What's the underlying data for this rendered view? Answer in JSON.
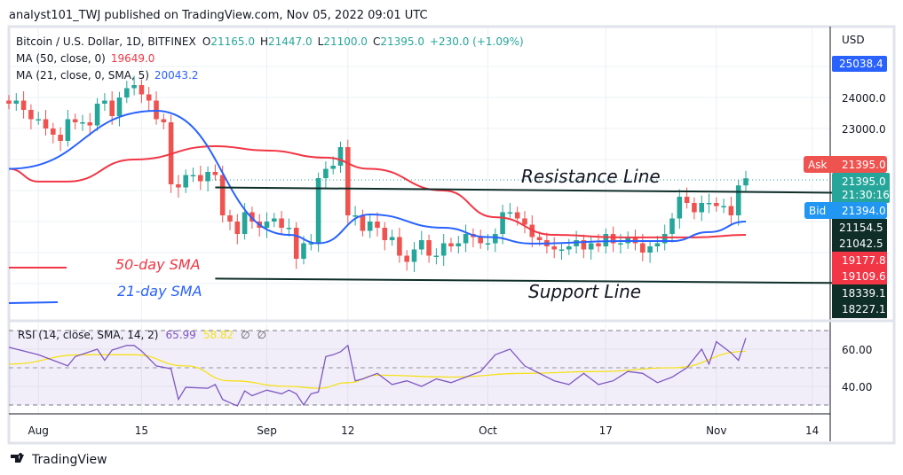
{
  "header": {
    "published": "analyst101_TWJ published on TradingView.com, Nov 05, 2022 09:01 UTC"
  },
  "legend": {
    "symbol": "Bitcoin / U.S. Dollar, 1D, BITFINEX",
    "o_label": "O",
    "o": "21165.0",
    "h_label": "H",
    "h": "21447.0",
    "l_label": "L",
    "l": "21100.0",
    "c_label": "C",
    "c": "21395.0",
    "change": "+230.0 (+1.09%)",
    "ma50_label": "MA (50, close, 0)",
    "ma50_value": "19649.0",
    "ma21_label": "MA (21, close, 0, SMA, 5)",
    "ma21_value": "20043.2",
    "rsi_label": "RSI (14, close, SMA, 14, 2)",
    "rsi_value": "65.99",
    "rsi_signal_value": "58.82",
    "rsi_extra1": "∅",
    "rsi_extra2": "∅"
  },
  "annotations": {
    "resistance": "Resistance Line",
    "support": "Support Line",
    "sma50": "50-day SMA",
    "sma21": "21-day SMA"
  },
  "price_axis": {
    "currency": "USD",
    "ticks": [
      "24000.0",
      "23000.0"
    ],
    "ma_top": "25038.4",
    "ask_label": "Ask",
    "ask": "21395.0",
    "last": "21395.0",
    "countdown": "21:30:16",
    "bid_label": "Bid",
    "bid": "21394.0",
    "dark1a": "21154.5",
    "dark1b": "21042.5",
    "red_a": "19177.8",
    "red_b": "19109.6",
    "dark2a": "18339.1",
    "dark2b": "18227.1"
  },
  "rsi_axis": {
    "ticks": [
      "60.00",
      "40.00"
    ]
  },
  "footer": {
    "brand": "TradingView"
  },
  "colors": {
    "up": "#26a69a",
    "down": "#ef5350",
    "ma50": "#f23645",
    "ma21": "#2962ff",
    "rsi": "#7e57c2",
    "signal": "#f5e11a"
  },
  "chart_data": {
    "type": "candlestick",
    "title": "Bitcoin / U.S. Dollar, 1D, BITFINEX",
    "start_date": "2022-07-28",
    "x_tick_labels": [
      {
        "day": 4,
        "label": "Aug"
      },
      {
        "day": 18,
        "label": "15"
      },
      {
        "day": 35,
        "label": "Sep"
      },
      {
        "day": 46,
        "label": "12"
      },
      {
        "day": 65,
        "label": "Oct"
      },
      {
        "day": 81,
        "label": "17"
      },
      {
        "day": 96,
        "label": "Nov"
      },
      {
        "day": 109,
        "label": "14"
      }
    ],
    "ylim": [
      17800,
      25300
    ],
    "closes": [
      23800,
      23900,
      23600,
      23300,
      23300,
      23000,
      22800,
      22600,
      23300,
      23200,
      23200,
      23100,
      23800,
      23900,
      23400,
      24000,
      24300,
      24400,
      24100,
      23900,
      23300,
      23200,
      21200,
      21100,
      21500,
      21500,
      21300,
      21600,
      21500,
      20200,
      20000,
      19600,
      20300,
      20000,
      19800,
      20000,
      20100,
      19800,
      19800,
      18800,
      19300,
      19300,
      21400,
      21700,
      21800,
      22400,
      20200,
      20200,
      19700,
      20000,
      19800,
      19400,
      19500,
      18900,
      18700,
      19100,
      19400,
      18900,
      18900,
      19300,
      19200,
      19300,
      19600,
      19500,
      19300,
      19300,
      19600,
      20300,
      20300,
      20100,
      19900,
      19500,
      19400,
      19200,
      19100,
      19100,
      19200,
      19400,
      19100,
      19300,
      19200,
      19600,
      19300,
      19300,
      19500,
      19300,
      19000,
      19200,
      19300,
      19600,
      20100,
      20800,
      20600,
      20300,
      20600,
      20600,
      20500,
      20500,
      20200,
      21165,
      21395
    ],
    "ma50": [
      [
        0,
        21700
      ],
      [
        4,
        21290
      ],
      [
        8,
        21290
      ],
      [
        17,
        22000
      ],
      [
        28,
        22430
      ],
      [
        35,
        22290
      ],
      [
        43,
        22060
      ],
      [
        49,
        21700
      ],
      [
        59,
        21000
      ],
      [
        66,
        20140
      ],
      [
        74,
        19570
      ],
      [
        83,
        19490
      ],
      [
        93,
        19490
      ],
      [
        100,
        19570
      ]
    ],
    "ma21": [
      [
        0,
        21700
      ],
      [
        20,
        23570
      ],
      [
        38,
        19570
      ],
      [
        42,
        19300
      ],
      [
        49,
        20230
      ],
      [
        59,
        19800
      ],
      [
        65,
        19500
      ],
      [
        71,
        19290
      ],
      [
        83,
        19370
      ],
      [
        90,
        19370
      ],
      [
        95,
        19660
      ],
      [
        100,
        20000
      ]
    ],
    "resistance_line": [
      [
        28,
        21100
      ],
      [
        112,
        20930
      ]
    ],
    "support_line": [
      [
        28,
        18160
      ],
      [
        112,
        18020
      ]
    ],
    "rsi": {
      "ylim": [
        25,
        75
      ],
      "bands": [
        30,
        70
      ],
      "values": [
        [
          0,
          61
        ],
        [
          4,
          57
        ],
        [
          8,
          51
        ],
        [
          9,
          56
        ],
        [
          12,
          60
        ],
        [
          13,
          54
        ],
        [
          14,
          59.5
        ],
        [
          16,
          62
        ],
        [
          17,
          62
        ],
        [
          18,
          59
        ],
        [
          20,
          51
        ],
        [
          22,
          49.5
        ],
        [
          23,
          33
        ],
        [
          24,
          39.5
        ],
        [
          27,
          39
        ],
        [
          28,
          41
        ],
        [
          29,
          33
        ],
        [
          31,
          29.5
        ],
        [
          32,
          37.6
        ],
        [
          33,
          35
        ],
        [
          35,
          38
        ],
        [
          37,
          36
        ],
        [
          38,
          38
        ],
        [
          39,
          36
        ],
        [
          40,
          30
        ],
        [
          41,
          36
        ],
        [
          42,
          37
        ],
        [
          43,
          56
        ],
        [
          44,
          57
        ],
        [
          45,
          58.6
        ],
        [
          46,
          62
        ],
        [
          47,
          43
        ],
        [
          48,
          44
        ],
        [
          50,
          47
        ],
        [
          52,
          41
        ],
        [
          54,
          43
        ],
        [
          56,
          40
        ],
        [
          58,
          44
        ],
        [
          60,
          42
        ],
        [
          62,
          45
        ],
        [
          64,
          48
        ],
        [
          66,
          57
        ],
        [
          68,
          60
        ],
        [
          70,
          51
        ],
        [
          72,
          47
        ],
        [
          74,
          43
        ],
        [
          76,
          41
        ],
        [
          78,
          47
        ],
        [
          80,
          41
        ],
        [
          82,
          43
        ],
        [
          84,
          48
        ],
        [
          86,
          47
        ],
        [
          88,
          42
        ],
        [
          90,
          45
        ],
        [
          92,
          50
        ],
        [
          94,
          60
        ],
        [
          95,
          52
        ],
        [
          96,
          64
        ],
        [
          98,
          58
        ],
        [
          99,
          54
        ],
        [
          100,
          66
        ]
      ],
      "signal": [
        [
          0,
          52
        ],
        [
          10,
          57
        ],
        [
          17,
          57
        ],
        [
          24,
          51
        ],
        [
          30,
          43
        ],
        [
          38,
          40
        ],
        [
          42,
          39
        ],
        [
          46,
          42
        ],
        [
          50,
          46
        ],
        [
          60,
          45
        ],
        [
          70,
          47
        ],
        [
          80,
          48
        ],
        [
          90,
          50
        ],
        [
          100,
          58.8
        ]
      ]
    }
  }
}
